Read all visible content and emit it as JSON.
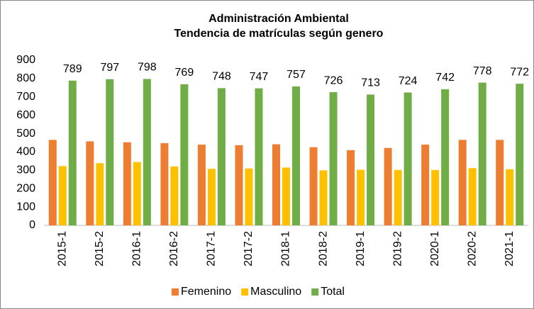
{
  "chart_data": {
    "type": "bar",
    "title": "Administración Ambiental",
    "subtitle": "Tendencia de matrículas según genero",
    "categories": [
      "2015-1",
      "2015-2",
      "2016-1",
      "2016-2",
      "2017-1",
      "2017-2",
      "2018-1",
      "2018-2",
      "2019-1",
      "2019-2",
      "2020-1",
      "2020-2",
      "2021-1"
    ],
    "series": [
      {
        "name": "Femenino",
        "color": "#ed7d31",
        "values": [
          466,
          458,
          453,
          448,
          440,
          437,
          442,
          426,
          410,
          422,
          440,
          466,
          466
        ]
      },
      {
        "name": "Masculino",
        "color": "#ffc000",
        "values": [
          323,
          339,
          345,
          321,
          308,
          310,
          315,
          300,
          303,
          302,
          302,
          312,
          306
        ]
      },
      {
        "name": "Total",
        "color": "#70ad47",
        "values": [
          789,
          797,
          798,
          769,
          748,
          747,
          757,
          726,
          713,
          724,
          742,
          778,
          772
        ],
        "data_labels": true
      }
    ],
    "ylim": [
      0,
      900
    ],
    "yticks": [
      0,
      100,
      200,
      300,
      400,
      500,
      600,
      700,
      800,
      900
    ],
    "grid": false,
    "legend": "bottom"
  }
}
